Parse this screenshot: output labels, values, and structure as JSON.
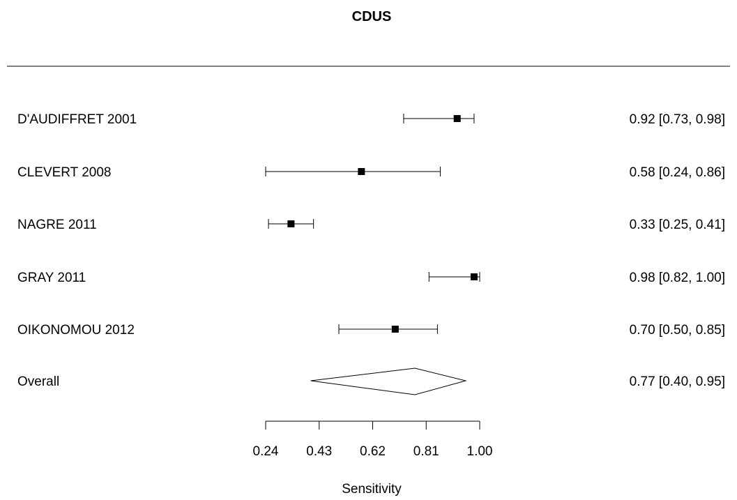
{
  "chart_data": {
    "type": "forest",
    "title": "CDUS",
    "xlabel": "Sensitivity",
    "xlim": [
      0.24,
      1.0
    ],
    "ticks": [
      "0.24",
      "0.43",
      "0.62",
      "0.81",
      "1.00"
    ],
    "studies": [
      {
        "label": "D'AUDIFFRET 2001",
        "estimate": 0.92,
        "lower": 0.73,
        "upper": 0.98,
        "ci_text": "0.92 [0.73, 0.98]"
      },
      {
        "label": "CLEVERT 2008",
        "estimate": 0.58,
        "lower": 0.24,
        "upper": 0.86,
        "ci_text": "0.58 [0.24, 0.86]"
      },
      {
        "label": "NAGRE 2011",
        "estimate": 0.33,
        "lower": 0.25,
        "upper": 0.41,
        "ci_text": "0.33 [0.25, 0.41]"
      },
      {
        "label": "GRAY 2011",
        "estimate": 0.98,
        "lower": 0.82,
        "upper": 1.0,
        "ci_text": "0.98 [0.82, 1.00]"
      },
      {
        "label": "OIKONOMOU 2012",
        "estimate": 0.7,
        "lower": 0.5,
        "upper": 0.85,
        "ci_text": "0.70 [0.50, 0.85]"
      }
    ],
    "overall": {
      "label": "Overall",
      "estimate": 0.77,
      "lower": 0.4,
      "upper": 0.95,
      "ci_text": "0.77 [0.40, 0.95]"
    }
  }
}
